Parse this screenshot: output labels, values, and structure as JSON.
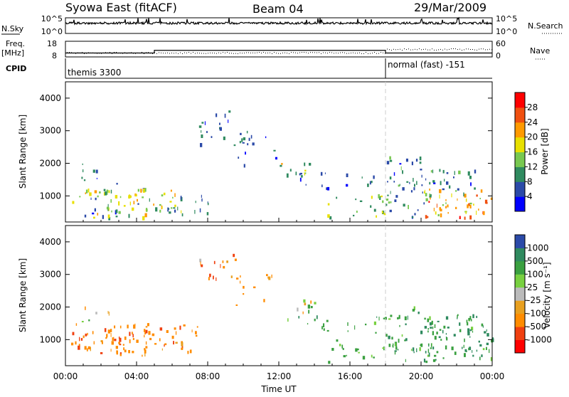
{
  "header": {
    "title": "Syowa East (fitACF)",
    "beam": "Beam 04",
    "date": "29/Mar/2009"
  },
  "top_panels": {
    "nsky_label": "N.Sky",
    "nsky_ticks": [
      "10^5",
      "10^0"
    ],
    "nsearch_label": "N.Search",
    "nsearch_ticks": [
      "10^5",
      "10^0"
    ],
    "freq_label_1": "Freq.",
    "freq_label_2": "[MHz]",
    "freq_ticks": [
      "18",
      "8"
    ],
    "nave_label": "Nave",
    "nave_ticks": [
      "60",
      "0"
    ],
    "cpid_label": "CPID",
    "cpid_segments": [
      {
        "name": "themis 3300",
        "start_hour": 0,
        "end_hour": 18
      },
      {
        "name": "normal (fast) -151",
        "start_hour": 18,
        "end_hour": 24
      }
    ],
    "freq_steps_mhz": [
      {
        "start_hour": 0,
        "end_hour": 5,
        "value": 10.5
      },
      {
        "start_hour": 5,
        "end_hour": 18,
        "value": 12.2
      },
      {
        "start_hour": 18,
        "end_hour": 24,
        "value": 10.5
      }
    ]
  },
  "x_axis": {
    "label": "Time UT",
    "ticks": [
      "00:00",
      "04:00",
      "08:00",
      "12:00",
      "16:00",
      "20:00",
      "00:00"
    ]
  },
  "y_axis": {
    "label": "Slant Range [km]",
    "ticks": [
      "4000",
      "3000",
      "2000",
      "1000"
    ]
  },
  "power_bar": {
    "label": "Power [dB]",
    "ticks": [
      "28",
      "24",
      "20",
      "16",
      "12",
      "8",
      "4"
    ],
    "colors": [
      "#0000ff",
      "#2b4aa8",
      "#2f8a5f",
      "#78c850",
      "#e8e000",
      "#ff9a00",
      "#f05010",
      "#ff0000"
    ]
  },
  "velocity_bar": {
    "label": "Velocity [m s⁻¹]",
    "ticks": [
      "1000",
      "500",
      "100",
      "25",
      "-25",
      "-100",
      "-500",
      "-1000"
    ],
    "colors": [
      "#2b4aa8",
      "#2f8a5f",
      "#3aa040",
      "#78d040",
      "#bbbbbb",
      "#e8a020",
      "#ff8c00",
      "#f04010",
      "#ff0000"
    ]
  },
  "chart_data": [
    {
      "type": "heatmap",
      "name": "Power",
      "x_range_hours": [
        0,
        24
      ],
      "y_range_km": [
        200,
        4500
      ],
      "colorbar_range_db": [
        0,
        32
      ],
      "vertical_marker_hour": 18,
      "regions": [
        {
          "t": [
            0.3,
            4.5
          ],
          "r": [
            300,
            1200
          ],
          "density": 0.55,
          "v": [
            3,
            22
          ]
        },
        {
          "t": [
            0.5,
            3.0
          ],
          "r": [
            1200,
            2000
          ],
          "density": 0.18,
          "v": [
            3,
            12
          ]
        },
        {
          "t": [
            2.0,
            6.5
          ],
          "r": [
            500,
            1200
          ],
          "density": 0.55,
          "v": [
            10,
            22
          ]
        },
        {
          "t": [
            5.5,
            8.0
          ],
          "r": [
            400,
            1000
          ],
          "density": 0.45,
          "v": [
            4,
            12
          ]
        },
        {
          "t": [
            7.5,
            10.5
          ],
          "r": [
            2500,
            3600
          ],
          "density": 0.3,
          "v": [
            3,
            10
          ]
        },
        {
          "t": [
            9.5,
            12.0
          ],
          "r": [
            1800,
            3000
          ],
          "density": 0.18,
          "v": [
            3,
            9
          ]
        },
        {
          "t": [
            12.0,
            14.0
          ],
          "r": [
            1600,
            2200
          ],
          "density": 0.4,
          "v": [
            5,
            22
          ]
        },
        {
          "t": [
            13.0,
            17.5
          ],
          "r": [
            1200,
            1700
          ],
          "density": 0.32,
          "v": [
            3,
            10
          ]
        },
        {
          "t": [
            14.5,
            18.0
          ],
          "r": [
            300,
            1000
          ],
          "density": 0.35,
          "v": [
            8,
            20
          ]
        },
        {
          "t": [
            18.0,
            20.5
          ],
          "r": [
            300,
            2200
          ],
          "density": 0.45,
          "v": [
            3,
            14
          ]
        },
        {
          "t": [
            20.0,
            24.0
          ],
          "r": [
            300,
            1200
          ],
          "density": 0.65,
          "v": [
            12,
            30
          ]
        },
        {
          "t": [
            20.0,
            23.0
          ],
          "r": [
            1000,
            1800
          ],
          "density": 0.45,
          "v": [
            3,
            14
          ]
        }
      ]
    },
    {
      "type": "heatmap",
      "name": "Velocity",
      "x_range_hours": [
        0,
        24
      ],
      "y_range_km": [
        200,
        4500
      ],
      "colorbar_range_ms": [
        -1000,
        1000
      ],
      "vertical_marker_hour": 18,
      "regions": [
        {
          "t": [
            0.3,
            4.5
          ],
          "r": [
            500,
            1200
          ],
          "density": 0.55,
          "v": [
            -700,
            -60
          ]
        },
        {
          "t": [
            0.5,
            3.0
          ],
          "r": [
            1200,
            2000
          ],
          "density": 0.18,
          "v": [
            -400,
            200
          ]
        },
        {
          "t": [
            2.0,
            7.5
          ],
          "r": [
            600,
            1500
          ],
          "density": 0.55,
          "v": [
            -600,
            -80
          ]
        },
        {
          "t": [
            7.5,
            10.0
          ],
          "r": [
            2800,
            3600
          ],
          "density": 0.35,
          "v": [
            -800,
            50
          ]
        },
        {
          "t": [
            9.5,
            12.0
          ],
          "r": [
            2000,
            3000
          ],
          "density": 0.2,
          "v": [
            -500,
            -60
          ]
        },
        {
          "t": [
            12.0,
            14.0
          ],
          "r": [
            1600,
            2200
          ],
          "density": 0.4,
          "v": [
            -300,
            400
          ]
        },
        {
          "t": [
            13.0,
            18.0
          ],
          "r": [
            1200,
            1700
          ],
          "density": 0.32,
          "v": [
            30,
            600
          ]
        },
        {
          "t": [
            14.5,
            18.0
          ],
          "r": [
            300,
            1000
          ],
          "density": 0.3,
          "v": [
            30,
            500
          ]
        },
        {
          "t": [
            18.0,
            21.0
          ],
          "r": [
            300,
            2000
          ],
          "density": 0.45,
          "v": [
            30,
            700
          ]
        },
        {
          "t": [
            20.0,
            24.0
          ],
          "r": [
            300,
            1800
          ],
          "density": 0.6,
          "v": [
            60,
            900
          ]
        }
      ]
    }
  ]
}
